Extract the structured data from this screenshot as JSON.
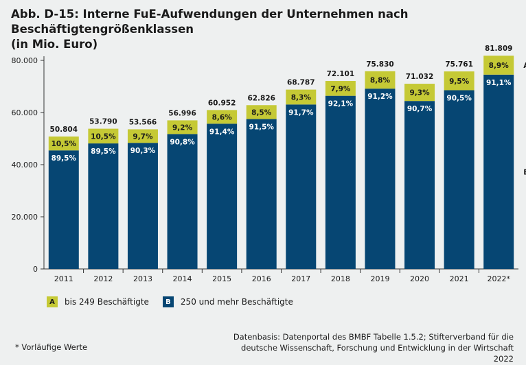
{
  "title_line1": "Abb. D-15: Interne FuE-Aufwendungen der Unternehmen nach Beschäftigtengrößenklassen",
  "title_line2": "(in Mio. Euro)",
  "legend": {
    "a_letter": "A",
    "a_label": "bis 249 Beschäftigte",
    "b_letter": "B",
    "b_label": "250 und mehr Beschäftigte"
  },
  "footnote": "* Vorläufige Werte",
  "source_line1": "Datenbasis: Datenportal des BMBF Tabelle 1.5.2; Stifterverband für die",
  "source_line2": "deutsche Wissenschaft, Forschung und Entwicklung in der Wirtschaft 2022",
  "colors": {
    "a": "#c5c935",
    "b": "#064673",
    "background": "#eef0f0",
    "axis": "#333333"
  },
  "chart_data": {
    "type": "bar",
    "stacked": true,
    "categories": [
      "2011",
      "2012",
      "2013",
      "2014",
      "2015",
      "2016",
      "2017",
      "2018",
      "2019",
      "2020",
      "2021",
      "2022*"
    ],
    "totals": [
      50804,
      53790,
      53566,
      56996,
      60952,
      62826,
      68787,
      72101,
      75830,
      71032,
      75761,
      81809
    ],
    "total_labels": [
      "50.804",
      "53.790",
      "53.566",
      "56.996",
      "60.952",
      "62.826",
      "68.787",
      "72.101",
      "75.830",
      "71.032",
      "75.761",
      "81.809"
    ],
    "series": [
      {
        "key": "B",
        "share": [
          89.5,
          89.5,
          90.3,
          90.8,
          91.4,
          91.5,
          91.7,
          92.1,
          91.2,
          90.7,
          90.5,
          91.1
        ],
        "labels": [
          "89,5%",
          "89,5%",
          "90,3%",
          "90,8%",
          "91,4%",
          "91,5%",
          "91,7%",
          "92,1%",
          "91,2%",
          "90,7%",
          "90,5%",
          "91,1%"
        ]
      },
      {
        "key": "A",
        "share": [
          10.5,
          10.5,
          9.7,
          9.2,
          8.6,
          8.5,
          8.3,
          7.9,
          8.8,
          9.3,
          9.5,
          8.9
        ],
        "labels": [
          "10,5%",
          "10,5%",
          "9,7%",
          "9,2%",
          "8,6%",
          "8,5%",
          "8,3%",
          "7,9%",
          "8,8%",
          "9,3%",
          "9,5%",
          "8,9%"
        ]
      }
    ],
    "series_end_labels": [
      "A",
      "B"
    ],
    "ylim": [
      0,
      80000
    ],
    "yticks": [
      0,
      20000,
      40000,
      60000,
      80000
    ],
    "ytick_labels": [
      "0",
      "20.000",
      "40.000",
      "60.000",
      "80.000"
    ],
    "grid": false
  }
}
